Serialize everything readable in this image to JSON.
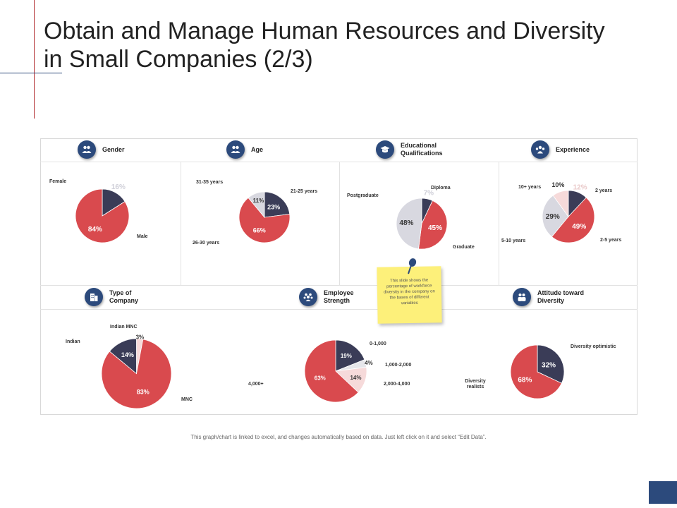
{
  "slide": {
    "title": "Obtain and Manage Human Resources and Diversity in Small Companies (2/3)",
    "footer": "This graph/chart is linked to excel, and changes automatically based on data. Just left click on it and select “Edit Data”."
  },
  "note": {
    "text": "This slide shows the percentage of workforce diversity in the company on the bases of different variables"
  },
  "colors": {
    "red": "#d94a4e",
    "navy": "#3a3c57",
    "grey": "#d8d8e0",
    "pink": "#f6dada",
    "accent": "#2c4a7c"
  },
  "sections": {
    "gender": {
      "label": "Gender",
      "icon": "people-icon"
    },
    "age": {
      "label": "Age",
      "icon": "people-icon"
    },
    "education": {
      "label": "Educational Qualifications",
      "icon": "graduation-cap-icon"
    },
    "experience": {
      "label": "Experience",
      "icon": "team-icon"
    },
    "type_of_company": {
      "label": "Type of Company",
      "icon": "building-icon"
    },
    "employee_strength": {
      "label": "Employee Strength",
      "icon": "group-icon"
    },
    "attitude": {
      "label": "Attitude toward Diversity",
      "icon": "users-icon"
    }
  },
  "chart_data": [
    {
      "type": "pie",
      "id": "gender",
      "labels": [
        "Female",
        "Male"
      ],
      "values": [
        16,
        84
      ],
      "display": [
        "16%",
        "84%"
      ]
    },
    {
      "type": "pie",
      "id": "age",
      "labels": [
        "21-25 years",
        "26-30 years",
        "31-35 years"
      ],
      "values": [
        23,
        66,
        11
      ],
      "display": [
        "23%",
        "66%",
        "11%"
      ]
    },
    {
      "type": "pie",
      "id": "education",
      "labels": [
        "Diploma",
        "Graduate",
        "Postgraduate"
      ],
      "values": [
        7,
        45,
        48
      ],
      "display": [
        "7%",
        "45%",
        "48%"
      ]
    },
    {
      "type": "pie",
      "id": "experience",
      "labels": [
        "2 years",
        "2-5 years",
        "5-10 years",
        "10+ years"
      ],
      "values": [
        12,
        49,
        29,
        10
      ],
      "display": [
        "12%",
        "49%",
        "29%",
        "10%"
      ]
    },
    {
      "type": "pie",
      "id": "type_of_company",
      "labels": [
        "Indian MNC",
        "MNC",
        "Indian"
      ],
      "values": [
        3,
        83,
        14
      ],
      "display": [
        "3%",
        "83%",
        "14%"
      ]
    },
    {
      "type": "pie",
      "id": "employee_strength",
      "labels": [
        "0-1,000",
        "1,000-2,000",
        "2,000-4,000",
        "4,000+"
      ],
      "values": [
        19,
        4,
        14,
        63
      ],
      "display": [
        "19%",
        "4%",
        "14%",
        "63%"
      ]
    },
    {
      "type": "pie",
      "id": "attitude",
      "labels": [
        "Diversity optimistic",
        "Diversity realists"
      ],
      "values": [
        32,
        68
      ],
      "display": [
        "32%",
        "68%"
      ]
    }
  ]
}
